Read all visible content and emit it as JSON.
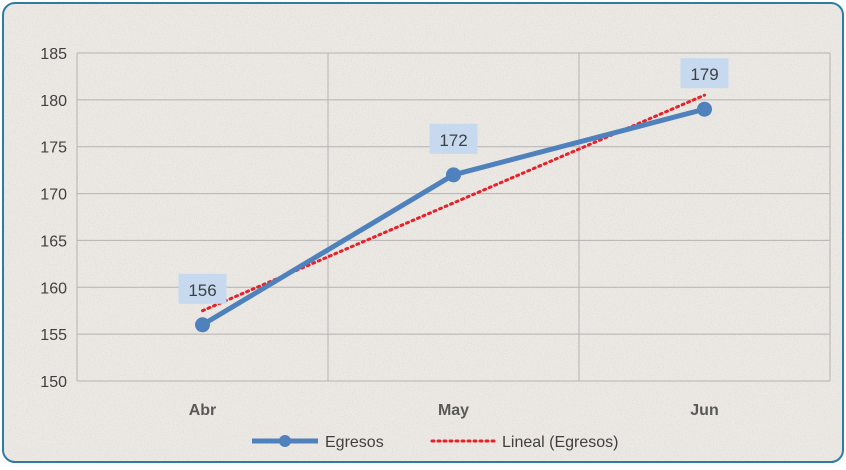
{
  "chart_data": {
    "type": "line",
    "categories": [
      "Abr",
      "May",
      "Jun"
    ],
    "series": [
      {
        "name": "Egresos",
        "values": [
          156,
          172,
          179
        ],
        "color": "#4f81bd",
        "marker": "circle"
      }
    ],
    "trendline": {
      "name": "Lineal (Egresos)",
      "type": "linear",
      "color": "#e8202a",
      "style": "dotted"
    },
    "data_labels": [
      "156",
      "172",
      "179"
    ],
    "y_ticks": [
      "150",
      "155",
      "160",
      "165",
      "170",
      "175",
      "180",
      "185"
    ],
    "ylim": [
      150,
      185
    ],
    "grid": true,
    "legend_position": "bottom",
    "title": "",
    "xlabel": "",
    "ylabel": ""
  },
  "colors": {
    "border": "#2e7ca3",
    "background": "#ece9e4",
    "grid": "#b3b3b3",
    "label_box": "#c6d9ef",
    "text": "#404040"
  }
}
